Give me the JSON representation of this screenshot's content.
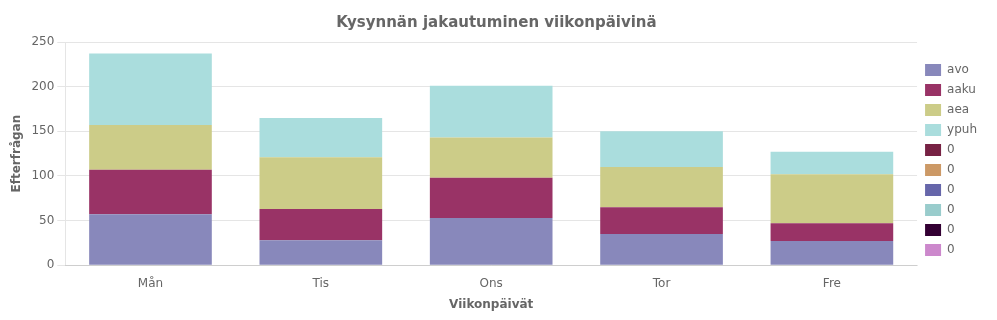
{
  "chart_data": {
    "type": "bar",
    "stacked": true,
    "title": "Kysynnän jakautuminen viikonpäivinä",
    "xlabel": "Viikonpäivät",
    "ylabel": "Efterfrågan",
    "categories": [
      "Mån",
      "Tis",
      "Ons",
      "Tor",
      "Fre"
    ],
    "series": [
      {
        "name": "avo",
        "color": "#8888bb",
        "values": [
          57,
          28,
          53,
          35,
          27
        ]
      },
      {
        "name": "aaku",
        "color": "#993366",
        "values": [
          50,
          35,
          45,
          30,
          20
        ]
      },
      {
        "name": "aea",
        "color": "#cccc88",
        "values": [
          50,
          58,
          45,
          45,
          55
        ]
      },
      {
        "name": "ypuh",
        "color": "#aadddd",
        "values": [
          80,
          44,
          58,
          40,
          25
        ]
      },
      {
        "name": "0",
        "color": "#772244",
        "values": [
          null,
          null,
          null,
          null,
          null
        ]
      },
      {
        "name": "0",
        "color": "#cc9966",
        "values": [
          null,
          null,
          null,
          null,
          null
        ]
      },
      {
        "name": "0",
        "color": "#6666aa",
        "values": [
          null,
          null,
          null,
          null,
          null
        ]
      },
      {
        "name": "0",
        "color": "#99cccc",
        "values": [
          null,
          null,
          null,
          null,
          null
        ]
      },
      {
        "name": "0",
        "color": "#330033",
        "values": [
          null,
          null,
          null,
          null,
          null
        ]
      },
      {
        "name": "0",
        "color": "#cc88cc",
        "values": [
          null,
          null,
          null,
          null,
          null
        ]
      }
    ],
    "ylim": [
      0,
      250
    ],
    "yticks": [
      0,
      50,
      100,
      150,
      200,
      250
    ],
    "grid": true,
    "legend": "right"
  }
}
